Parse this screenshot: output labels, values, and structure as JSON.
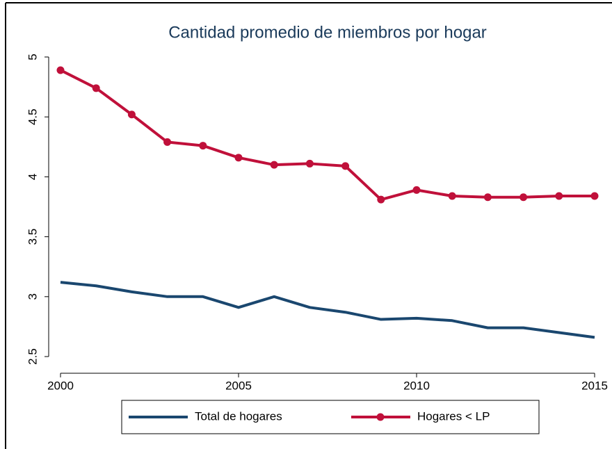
{
  "chart_data": {
    "type": "line",
    "title": "Cantidad promedio de miembros por hogar",
    "x": [
      2000,
      2001,
      2002,
      2003,
      2004,
      2005,
      2006,
      2007,
      2008,
      2009,
      2010,
      2011,
      2012,
      2013,
      2014,
      2015
    ],
    "series": [
      {
        "name": "Total de hogares",
        "color": "#1a476f",
        "marker": false,
        "values": [
          3.12,
          3.09,
          3.04,
          3.0,
          3.0,
          2.91,
          3.0,
          2.91,
          2.87,
          2.81,
          2.82,
          2.8,
          2.74,
          2.74,
          2.7,
          2.66
        ]
      },
      {
        "name": "Hogares < LP",
        "color": "#c0103a",
        "marker": true,
        "values": [
          4.89,
          4.74,
          4.52,
          4.29,
          4.26,
          4.16,
          4.1,
          4.11,
          4.09,
          3.81,
          3.89,
          3.84,
          3.83,
          3.83,
          3.84,
          3.84
        ]
      }
    ],
    "xlim": [
      2000,
      2015
    ],
    "xticks": [
      2000,
      2005,
      2010,
      2015
    ],
    "ylim": [
      2.5,
      5
    ],
    "yticks": [
      2.5,
      3,
      3.5,
      4,
      4.5,
      5
    ],
    "legend": "bottom"
  }
}
